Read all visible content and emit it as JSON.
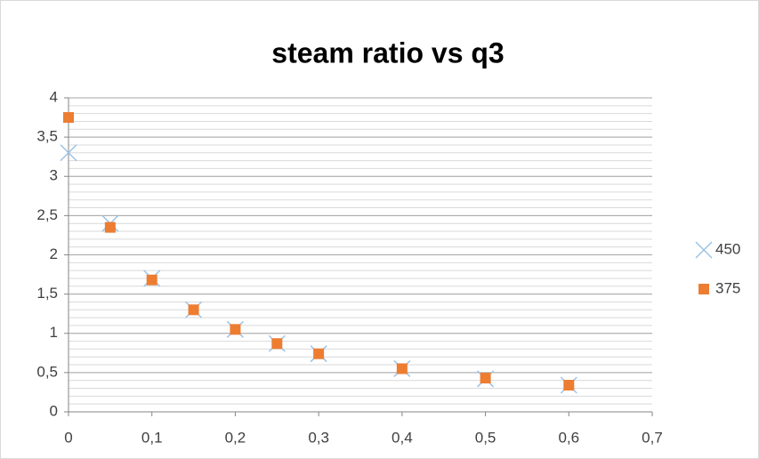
{
  "chart_data": {
    "type": "scatter",
    "title": "steam ratio vs q3",
    "series": [
      {
        "name": "450",
        "color": "#9dc3e6",
        "marker": "x",
        "x": [
          0,
          0.05,
          0.1,
          0.15,
          0.2,
          0.25,
          0.3,
          0.4,
          0.5,
          0.6
        ],
        "values": [
          3.3,
          2.4,
          1.7,
          1.3,
          1.05,
          0.87,
          0.74,
          0.55,
          0.42,
          0.34
        ]
      },
      {
        "name": "375",
        "color": "#ed7d31",
        "marker": "square",
        "x": [
          0,
          0.05,
          0.1,
          0.15,
          0.2,
          0.25,
          0.3,
          0.4,
          0.5,
          0.6
        ],
        "values": [
          3.75,
          2.35,
          1.68,
          1.3,
          1.05,
          0.87,
          0.74,
          0.55,
          0.43,
          0.34
        ]
      }
    ],
    "xlim": [
      0,
      0.7
    ],
    "xticks": [
      0,
      {
        "value": 0.1,
        "label": "0,1"
      },
      {
        "value": 0.2,
        "label": "0,2"
      },
      {
        "value": 0.3,
        "label": "0,3"
      },
      {
        "value": 0.4,
        "label": "0,4"
      },
      {
        "value": 0.5,
        "label": "0,5"
      },
      {
        "value": 0.6,
        "label": "0,6"
      },
      {
        "value": 0.7,
        "label": "0,7"
      }
    ],
    "ylim": [
      0,
      4
    ],
    "yticks": [
      0,
      {
        "value": 0.5,
        "label": "0,5"
      },
      1,
      {
        "value": 1.5,
        "label": "1,5"
      },
      2,
      {
        "value": 2.5,
        "label": "2,5"
      },
      3,
      {
        "value": 3.5,
        "label": "3,5"
      },
      4
    ],
    "grid": true,
    "minor_grid_step": 0.1,
    "legend": "right"
  }
}
